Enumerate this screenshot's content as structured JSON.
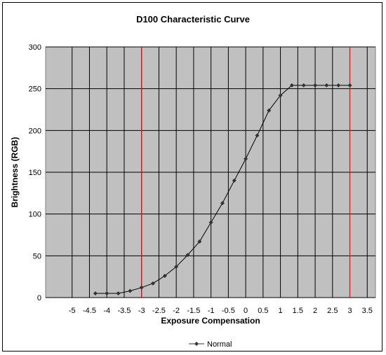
{
  "chart_data": {
    "type": "line",
    "title": "D100 Characteristic Curve",
    "xlabel": "Exposure Compensation",
    "ylabel": "Brightness (RGB)",
    "x_ticks": [
      "-5",
      "-4.5",
      "-4",
      "-3.5",
      "-3",
      "-2.5",
      "-2",
      "-1.5",
      "-1",
      "-0.5",
      "0",
      "0.5",
      "1",
      "1.5",
      "2",
      "2.5",
      "3",
      "3.5"
    ],
    "y_ticks": [
      "0",
      "50",
      "100",
      "150",
      "200",
      "250",
      "300"
    ],
    "xlim": [
      -5.5,
      4
    ],
    "ylim": [
      0,
      300
    ],
    "grid": true,
    "reference_lines_x": [
      -3,
      3
    ],
    "reference_line_color": "#ff0000",
    "plot_background": "#c0c0c0",
    "series_color": "#000000",
    "legend_position": "bottom",
    "series": [
      {
        "name": "Normal",
        "marker": "diamond",
        "x": [
          -4.33,
          -4,
          -3.67,
          -3.33,
          -3,
          -2.67,
          -2.33,
          -2,
          -1.67,
          -1.33,
          -1,
          -0.67,
          -0.33,
          0,
          0.33,
          0.67,
          1,
          1.33,
          1.67,
          2,
          2.33,
          2.67,
          3
        ],
        "y": [
          5,
          5,
          5,
          8,
          12,
          17,
          26,
          37,
          51,
          67,
          90,
          113,
          140,
          166,
          194,
          224,
          242,
          254,
          254,
          254,
          254,
          254,
          254
        ]
      }
    ]
  }
}
